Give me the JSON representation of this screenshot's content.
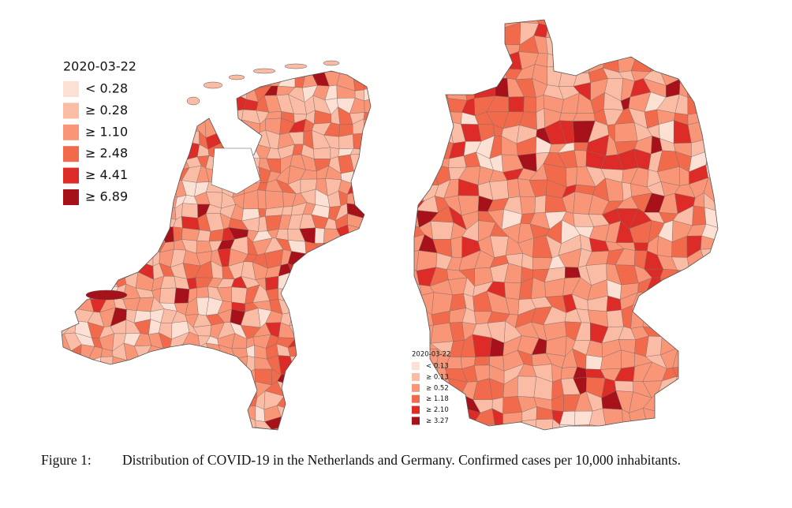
{
  "figure": {
    "maps": [
      {
        "legend": {
          "title": "2020-03-22",
          "entries": [
            {
              "label": "< 0.28",
              "color": "#fde0d4"
            },
            {
              "label": "≥ 0.28",
              "color": "#fbbca5"
            },
            {
              "label": "≥ 1.10",
              "color": "#f99677"
            },
            {
              "label": "≥ 2.48",
              "color": "#f26a4c"
            },
            {
              "label": "≥ 4.41",
              "color": "#dd2c27"
            },
            {
              "label": "≥ 6.89",
              "color": "#a6111a"
            }
          ]
        }
      },
      {
        "legend": {
          "title": "2020-03-22",
          "entries": [
            {
              "label": "< 0.13",
              "color": "#fde0d4"
            },
            {
              "label": "≥ 0.13",
              "color": "#fbbca5"
            },
            {
              "label": "≥ 0.52",
              "color": "#f99677"
            },
            {
              "label": "≥ 1.18",
              "color": "#f26a4c"
            },
            {
              "label": "≥ 2.10",
              "color": "#dd2c27"
            },
            {
              "label": "≥ 3.27",
              "color": "#a6111a"
            }
          ]
        }
      }
    ],
    "caption": {
      "label": "Figure 1:",
      "text": "Distribution of COVID-19 in the Netherlands and Germany.  Confirmed cases per 10,000 inhabitants."
    }
  }
}
